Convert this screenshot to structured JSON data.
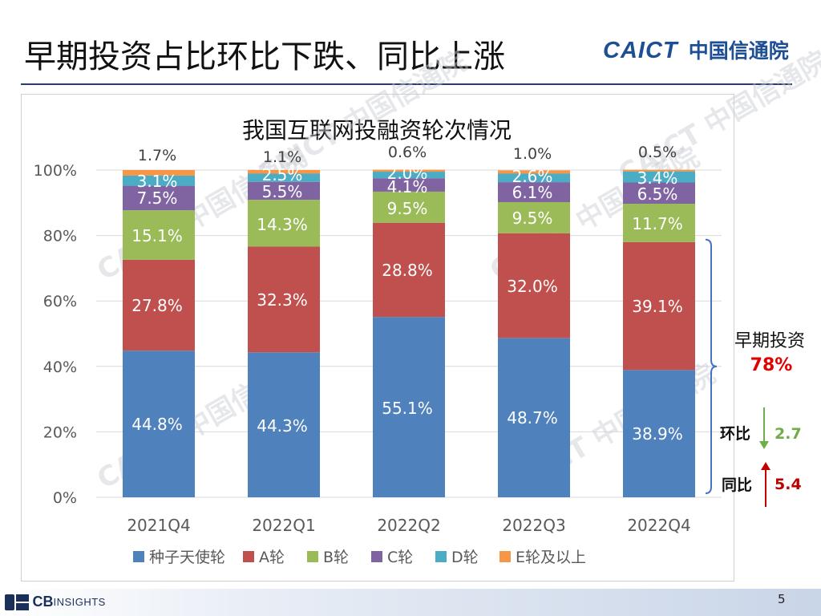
{
  "slide": {
    "title": "早期投资占比环比下跌、同比上涨",
    "logo_en": "CAICT",
    "logo_cn": "中国信通院",
    "page_number": "5",
    "source_logo_main": "CB",
    "source_logo_sub": "INSIGHTS"
  },
  "chart_data": {
    "type": "bar",
    "stacked": true,
    "percent_stacked": true,
    "title": "我国互联网投融资轮次情况",
    "categories": [
      "2021Q4",
      "2022Q1",
      "2022Q2",
      "2022Q3",
      "2022Q4"
    ],
    "series": [
      {
        "name": "种子天使轮",
        "color": "#4f81bd",
        "values": [
          44.8,
          44.3,
          55.1,
          48.7,
          38.9
        ]
      },
      {
        "name": "A轮",
        "color": "#c0504d",
        "values": [
          27.8,
          32.3,
          28.8,
          32.0,
          39.1
        ]
      },
      {
        "name": "B轮",
        "color": "#9bbb59",
        "values": [
          15.1,
          14.3,
          9.5,
          9.5,
          11.7
        ]
      },
      {
        "name": "C轮",
        "color": "#8064a2",
        "values": [
          7.5,
          5.5,
          4.1,
          6.1,
          6.5
        ]
      },
      {
        "name": "D轮",
        "color": "#4bacc6",
        "values": [
          3.1,
          2.5,
          2.0,
          2.6,
          3.4
        ]
      },
      {
        "name": "E轮及以上",
        "color": "#f79646",
        "values": [
          1.7,
          1.1,
          0.6,
          1.0,
          0.5
        ]
      }
    ],
    "data_labels": [
      [
        "44.8%",
        "27.8%",
        "15.1%",
        "7.5%",
        "3.1%",
        "1.7%"
      ],
      [
        "44.3%",
        "32.3%",
        "14.3%",
        "5.5%",
        "2.5%",
        "1.1%"
      ],
      [
        "55.1%",
        "28.8%",
        "9.5%",
        "4.1%",
        "2.0%",
        "0.6%"
      ],
      [
        "48.7%",
        "32.0%",
        "9.5%",
        "6.1%",
        "2.6%",
        "1.0%"
      ],
      [
        "38.9%",
        "39.1%",
        "11.7%",
        "6.5%",
        "3.4%",
        "0.5%"
      ]
    ],
    "ylim": [
      0,
      100
    ],
    "yticks": [
      "0%",
      "20%",
      "40%",
      "60%",
      "80%",
      "100%"
    ],
    "grid": true,
    "legend_position": "bottom",
    "annotations": {
      "bracket_label": "早期投资",
      "bracket_value": "78%",
      "qoq_label": "环比",
      "qoq_value": "2.7",
      "qoq_direction": "down",
      "qoq_color": "#70ad47",
      "yoy_label": "同比",
      "yoy_value": "5.4",
      "yoy_direction": "up",
      "yoy_color": "#c00000"
    },
    "watermark": "CAICT 中国信通院"
  }
}
